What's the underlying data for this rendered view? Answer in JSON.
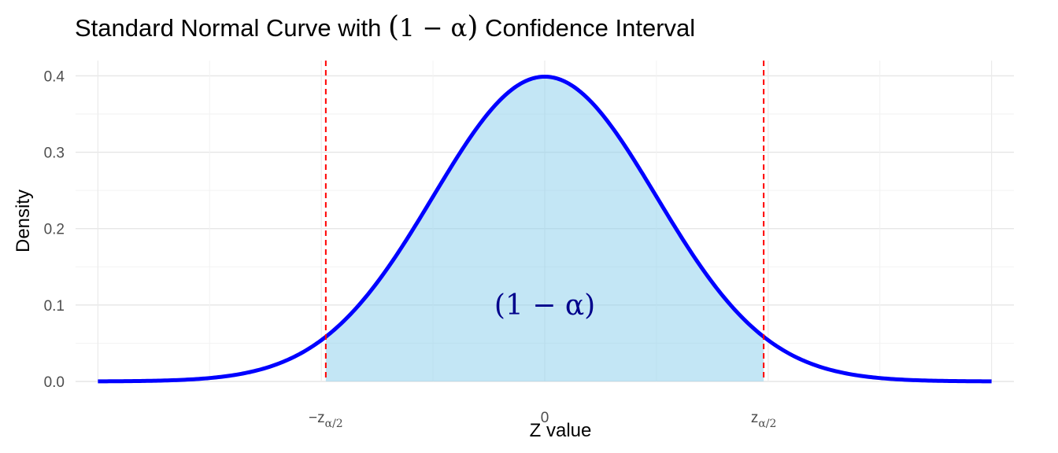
{
  "chart_data": {
    "type": "area",
    "title": {
      "prefix": "Standard Normal Curve with ",
      "math_open": "(",
      "math_body": "1 − α",
      "math_close": ")",
      "suffix": " Confidence Interval"
    },
    "xlabel": "Z value",
    "ylabel": "Density",
    "xlim": [
      -4.2,
      4.2
    ],
    "ylim": [
      0,
      0.42
    ],
    "y_ticks": [
      {
        "value": 0.0,
        "label": "0.0"
      },
      {
        "value": 0.1,
        "label": "0.1"
      },
      {
        "value": 0.2,
        "label": "0.2"
      },
      {
        "value": 0.3,
        "label": "0.3"
      },
      {
        "value": 0.4,
        "label": "0.4"
      }
    ],
    "x_ticks": [
      {
        "value": -1.96,
        "sign": "−",
        "base": "z",
        "sub": "α/2"
      },
      {
        "value": 0,
        "sign": "",
        "base": "0",
        "sub": ""
      },
      {
        "value": 1.96,
        "sign": "",
        "base": "z",
        "sub": "α/2"
      }
    ],
    "x_minor_grid": [
      -3,
      -1,
      1,
      3
    ],
    "x_major_grid": [
      -4,
      -2,
      0,
      2,
      4
    ],
    "curve": {
      "mean": 0,
      "sd": 1,
      "range": [
        -4,
        4
      ],
      "color": "#0000ff"
    },
    "shaded_interval": {
      "from": -1.96,
      "to": 1.96,
      "color": "#87ceeb"
    },
    "critical_lines": {
      "values": [
        -1.96,
        1.96
      ],
      "color": "#ff0000",
      "style": "dashed"
    },
    "annotation": {
      "text": "(1 − α)",
      "x": 0,
      "y": 0.1
    },
    "grid": true,
    "legend": "none"
  }
}
